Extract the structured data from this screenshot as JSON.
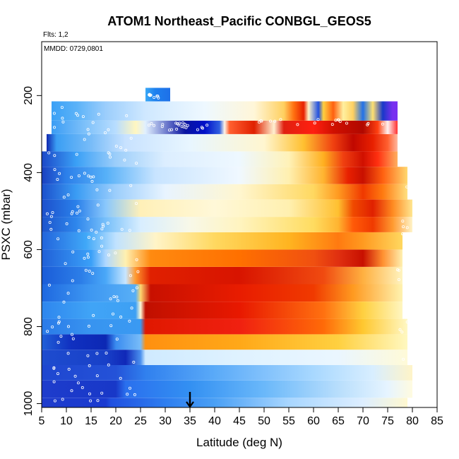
{
  "chart_data": {
    "type": "heatmap",
    "title": "ATOM1 Northeast_Pacific CONBGL_GEOS5",
    "subtitle": "Flts: 1,2",
    "annotation": "MMDD: 0729,0801",
    "xlabel": "Latitude (deg N)",
    "ylabel": "PSXC (mbar)",
    "xlim": [
      5,
      85
    ],
    "ylim": [
      1010,
      60
    ],
    "x_ticks": [
      5,
      10,
      15,
      20,
      25,
      30,
      35,
      40,
      45,
      50,
      55,
      60,
      65,
      70,
      75,
      80,
      85
    ],
    "y_ticks": [
      1000,
      800,
      600,
      400,
      200
    ],
    "y_axis_reversed": true,
    "grid": false,
    "marker": {
      "type": "arrow",
      "x": 35,
      "points_to": "x-axis"
    },
    "color_scale": [
      "#1030c8",
      "#1e78f0",
      "#00b4ff",
      "#a0d2ff",
      "#e6f5ff",
      "#fffac8",
      "#ffdc28",
      "#ff8c00",
      "#e61400",
      "#b40000",
      "#0000a0",
      "#7828f0"
    ],
    "layers": [
      {
        "pmin": 985,
        "pmax": 1010,
        "xmin": 5,
        "xmax": 79,
        "stops": [
          [
            5,
            "#1e3ccc"
          ],
          [
            18,
            "#1a3ad0"
          ],
          [
            19,
            "#2050e0"
          ],
          [
            30,
            "#2e7ef0"
          ],
          [
            40,
            "#4aa0f5"
          ],
          [
            55,
            "#a8d6ff"
          ],
          [
            70,
            "#ddeeff"
          ],
          [
            79,
            "#fff8d0"
          ]
        ]
      },
      {
        "pmin": 940,
        "pmax": 985,
        "xmin": 5,
        "xmax": 80,
        "stops": [
          [
            5,
            "#1e3ccc"
          ],
          [
            20,
            "#1838c8"
          ],
          [
            22,
            "#2a70ee"
          ],
          [
            35,
            "#3390f2"
          ],
          [
            50,
            "#6ab8fa"
          ],
          [
            65,
            "#b8defc"
          ],
          [
            75,
            "#e6f4ff"
          ],
          [
            80,
            "#fffbe0"
          ]
        ]
      },
      {
        "pmin": 900,
        "pmax": 940,
        "xmin": 5,
        "xmax": 80,
        "stops": [
          [
            5,
            "#1e46d0"
          ],
          [
            20,
            "#2452d8"
          ],
          [
            26,
            "#3080ee"
          ],
          [
            40,
            "#5aaaf8"
          ],
          [
            60,
            "#a8d8ff"
          ],
          [
            72,
            "#d8eeff"
          ],
          [
            80,
            "#fff4c8"
          ]
        ]
      },
      {
        "pmin": 860,
        "pmax": 900,
        "xmin": 5,
        "xmax": 79,
        "stops": [
          [
            5,
            "#1e4ccf"
          ],
          [
            18,
            "#1840c8"
          ],
          [
            22,
            "#1028b8"
          ],
          [
            25,
            "#4a90ee"
          ],
          [
            26,
            "#cfeaff"
          ],
          [
            45,
            "#dff2ff"
          ],
          [
            65,
            "#eaf6ff"
          ],
          [
            79,
            "#fffad8"
          ]
        ]
      },
      {
        "pmin": 820,
        "pmax": 860,
        "xmin": 5,
        "xmax": 79,
        "stops": [
          [
            5,
            "#2060d8"
          ],
          [
            11,
            "#1030c0"
          ],
          [
            18,
            "#0c28b4"
          ],
          [
            20,
            "#3a8cf0"
          ],
          [
            25,
            "#78bcf8"
          ],
          [
            26,
            "#ff9010"
          ],
          [
            45,
            "#ffa818"
          ],
          [
            65,
            "#ffd040"
          ],
          [
            79,
            "#fff8c0"
          ]
        ]
      },
      {
        "pmin": 780,
        "pmax": 820,
        "xmin": 5,
        "xmax": 79,
        "stops": [
          [
            5,
            "#2a7ae8"
          ],
          [
            15,
            "#3894f0"
          ],
          [
            25,
            "#3a9af2"
          ],
          [
            26,
            "#e01800"
          ],
          [
            45,
            "#f02010"
          ],
          [
            62,
            "#ff6a08"
          ],
          [
            70,
            "#ffc830"
          ],
          [
            79,
            "#fff8c4"
          ]
        ]
      },
      {
        "pmin": 735,
        "pmax": 780,
        "xmin": 5,
        "xmax": 78,
        "stops": [
          [
            5,
            "#2e86ee"
          ],
          [
            15,
            "#40a4f6"
          ],
          [
            24,
            "#3ea0f4"
          ],
          [
            25,
            "#fffad8"
          ],
          [
            26,
            "#c01000"
          ],
          [
            45,
            "#e81800"
          ],
          [
            62,
            "#ff7010"
          ],
          [
            70,
            "#ffd040"
          ],
          [
            78,
            "#fff6c0"
          ]
        ]
      },
      {
        "pmin": 690,
        "pmax": 735,
        "xmin": 5,
        "xmax": 78,
        "stops": [
          [
            5,
            "#1e68e0"
          ],
          [
            15,
            "#3e98f2"
          ],
          [
            24,
            "#58aff6"
          ],
          [
            25,
            "#ffd870"
          ],
          [
            27,
            "#c81000"
          ],
          [
            45,
            "#e81c00"
          ],
          [
            60,
            "#f03a00"
          ],
          [
            68,
            "#ff9a20"
          ],
          [
            78,
            "#fff3b0"
          ]
        ]
      },
      {
        "pmin": 645,
        "pmax": 690,
        "xmin": 5,
        "xmax": 78,
        "stops": [
          [
            5,
            "#1a5cd8"
          ],
          [
            13,
            "#2c7ee8"
          ],
          [
            18,
            "#4aa8f8"
          ],
          [
            22,
            "#c8e6ff"
          ],
          [
            24,
            "#ff9a30"
          ],
          [
            27,
            "#e02000"
          ],
          [
            45,
            "#d81400"
          ],
          [
            62,
            "#f04a10"
          ],
          [
            70,
            "#ffb040"
          ],
          [
            78,
            "#fff4c0"
          ]
        ]
      },
      {
        "pmin": 600,
        "pmax": 645,
        "xmin": 5,
        "xmax": 78,
        "stops": [
          [
            5,
            "#2060d8"
          ],
          [
            15,
            "#3aa0f8"
          ],
          [
            18,
            "#b0d8ff"
          ],
          [
            22,
            "#fff0b0"
          ],
          [
            27,
            "#ff8a10"
          ],
          [
            45,
            "#ff7000"
          ],
          [
            60,
            "#f05010"
          ],
          [
            65,
            "#e03010"
          ],
          [
            70,
            "#c81000"
          ],
          [
            74,
            "#ff9030"
          ],
          [
            78,
            "#fff0b0"
          ]
        ]
      },
      {
        "pmin": 555,
        "pmax": 600,
        "xmin": 5,
        "xmax": 78,
        "stops": [
          [
            5,
            "#2264dc"
          ],
          [
            14,
            "#40a8f8"
          ],
          [
            20,
            "#c0e2ff"
          ],
          [
            28,
            "#fff4c8"
          ],
          [
            40,
            "#ffd860"
          ],
          [
            55,
            "#ffb420"
          ],
          [
            65,
            "#ff7a10"
          ],
          [
            70,
            "#ff9a20"
          ],
          [
            78,
            "#ffd860"
          ]
        ]
      },
      {
        "pmin": 515,
        "pmax": 555,
        "xmin": 5,
        "xmax": 80,
        "stops": [
          [
            5,
            "#1c54cc"
          ],
          [
            12,
            "#2e86ec"
          ],
          [
            18,
            "#78c0fa"
          ],
          [
            25,
            "#d8eeff"
          ],
          [
            35,
            "#f8f8e8"
          ],
          [
            45,
            "#fff4c0"
          ],
          [
            60,
            "#ffdc60"
          ],
          [
            65,
            "#ffb430"
          ],
          [
            68,
            "#ff5a08"
          ],
          [
            72,
            "#f03a00"
          ],
          [
            76,
            "#ff9a30"
          ],
          [
            80,
            "#fff4c8"
          ]
        ]
      },
      {
        "pmin": 470,
        "pmax": 515,
        "xmin": 5,
        "xmax": 80,
        "stops": [
          [
            5,
            "#1c50cc"
          ],
          [
            12,
            "#2a80ea"
          ],
          [
            18,
            "#8ac8fc"
          ],
          [
            25,
            "#fff0b8"
          ],
          [
            40,
            "#fff8d8"
          ],
          [
            55,
            "#fff0b0"
          ],
          [
            65,
            "#ffc030"
          ],
          [
            68,
            "#f04a00"
          ],
          [
            72,
            "#e02000"
          ],
          [
            76,
            "#ff8a20"
          ],
          [
            80,
            "#ffe690"
          ]
        ]
      },
      {
        "pmin": 430,
        "pmax": 470,
        "xmin": 5,
        "xmax": 79,
        "stops": [
          [
            5,
            "#1c50cc"
          ],
          [
            12,
            "#3a9cf4"
          ],
          [
            20,
            "#9ccefc"
          ],
          [
            30,
            "#e8f4ff"
          ],
          [
            45,
            "#fff6d0"
          ],
          [
            60,
            "#ffd860"
          ],
          [
            65,
            "#ff9a20"
          ],
          [
            70,
            "#f03800"
          ],
          [
            74,
            "#ff7a10"
          ],
          [
            79,
            "#ffe080"
          ]
        ]
      },
      {
        "pmin": 385,
        "pmax": 430,
        "xmin": 5,
        "xmax": 79,
        "stops": [
          [
            5,
            "#1a40c0"
          ],
          [
            10,
            "#2c80ea"
          ],
          [
            18,
            "#56b0f8"
          ],
          [
            28,
            "#c8e4ff"
          ],
          [
            45,
            "#f0f8ff"
          ],
          [
            55,
            "#fff0b0"
          ],
          [
            62,
            "#ffb430"
          ],
          [
            67,
            "#e82000"
          ],
          [
            70,
            "#c81000"
          ],
          [
            74,
            "#ff6010"
          ],
          [
            79,
            "#ffd870"
          ]
        ]
      },
      {
        "pmin": 345,
        "pmax": 385,
        "xmin": 5,
        "xmax": 77,
        "stops": [
          [
            5,
            "#1c48c8"
          ],
          [
            12,
            "#3aa0f6"
          ],
          [
            20,
            "#9ccefa"
          ],
          [
            30,
            "#dceeff"
          ],
          [
            45,
            "#eef8ff"
          ],
          [
            55,
            "#fff2b8"
          ],
          [
            62,
            "#ffb020"
          ],
          [
            66,
            "#f04010"
          ],
          [
            70,
            "#d01000"
          ],
          [
            73,
            "#ff3010"
          ],
          [
            77,
            "#ffb060"
          ]
        ]
      },
      {
        "pmin": 300,
        "pmax": 345,
        "xmin": 6,
        "xmax": 77,
        "stops": [
          [
            6,
            "#1028b0"
          ],
          [
            8,
            "#3a9ef4"
          ],
          [
            15,
            "#78bcf8"
          ],
          [
            22,
            "#c8e2ff"
          ],
          [
            35,
            "#e8f6ff"
          ],
          [
            50,
            "#fff6d0"
          ],
          [
            58,
            "#ffc030"
          ],
          [
            64,
            "#f04010"
          ],
          [
            68,
            "#c00800"
          ],
          [
            72,
            "#e82000"
          ],
          [
            75,
            "#ff6030"
          ],
          [
            77,
            "#ffb8a0"
          ]
        ]
      },
      {
        "pmin": 265,
        "pmax": 300,
        "xmin": 7,
        "xmax": 77,
        "stops": [
          [
            7,
            "#3a9cf4"
          ],
          [
            14,
            "#80c2fa"
          ],
          [
            20,
            "#b8ddff"
          ],
          [
            24,
            "#fff6c0"
          ],
          [
            26,
            "#e0f0ff"
          ],
          [
            34,
            "#0a14a0"
          ],
          [
            38,
            "#0010c8"
          ],
          [
            41,
            "#3060e0"
          ],
          [
            42,
            "#fff4e8"
          ],
          [
            43,
            "#ff6030"
          ],
          [
            48,
            "#e02000"
          ],
          [
            52,
            "#fff0d0"
          ],
          [
            54,
            "#e02010"
          ],
          [
            60,
            "#ff2010"
          ],
          [
            64,
            "#d01000"
          ],
          [
            70,
            "#b00800"
          ],
          [
            73,
            "#ff4010"
          ],
          [
            75,
            "#fff2f0"
          ],
          [
            77,
            "#ff3030"
          ]
        ]
      },
      {
        "pmin": 215,
        "pmax": 265,
        "xmin": 7,
        "xmax": 77,
        "stops": [
          [
            7,
            "#3aa0f6"
          ],
          [
            12,
            "#5ab2f8"
          ],
          [
            18,
            "#9ccefc"
          ],
          [
            26,
            "#cfe8ff"
          ],
          [
            38,
            "#eef8ff"
          ],
          [
            48,
            "#fff6d8"
          ],
          [
            54,
            "#ffd060"
          ],
          [
            56,
            "#ff7010"
          ],
          [
            58,
            "#e82000"
          ],
          [
            59,
            "#fff4c8"
          ],
          [
            61,
            "#2050e0"
          ],
          [
            62,
            "#ffd040"
          ],
          [
            64,
            "#ff6010"
          ],
          [
            66,
            "#fff0a0"
          ],
          [
            68,
            "#ffd060"
          ],
          [
            70,
            "#2070e8"
          ],
          [
            72,
            "#ffe070"
          ],
          [
            74,
            "#1838c8"
          ],
          [
            76,
            "#7830f0"
          ],
          [
            77,
            "#7830f0"
          ]
        ]
      },
      {
        "pmin": 180,
        "pmax": 215,
        "xmin": 26,
        "xmax": 31,
        "stops": [
          [
            26,
            "#3aa8f6"
          ],
          [
            28,
            "#1e80ee"
          ],
          [
            31,
            "#1e70e8"
          ]
        ]
      }
    ]
  },
  "colors": {
    "background": "#ffffff",
    "axis": "#000000",
    "point_outline": "#ffffff"
  }
}
